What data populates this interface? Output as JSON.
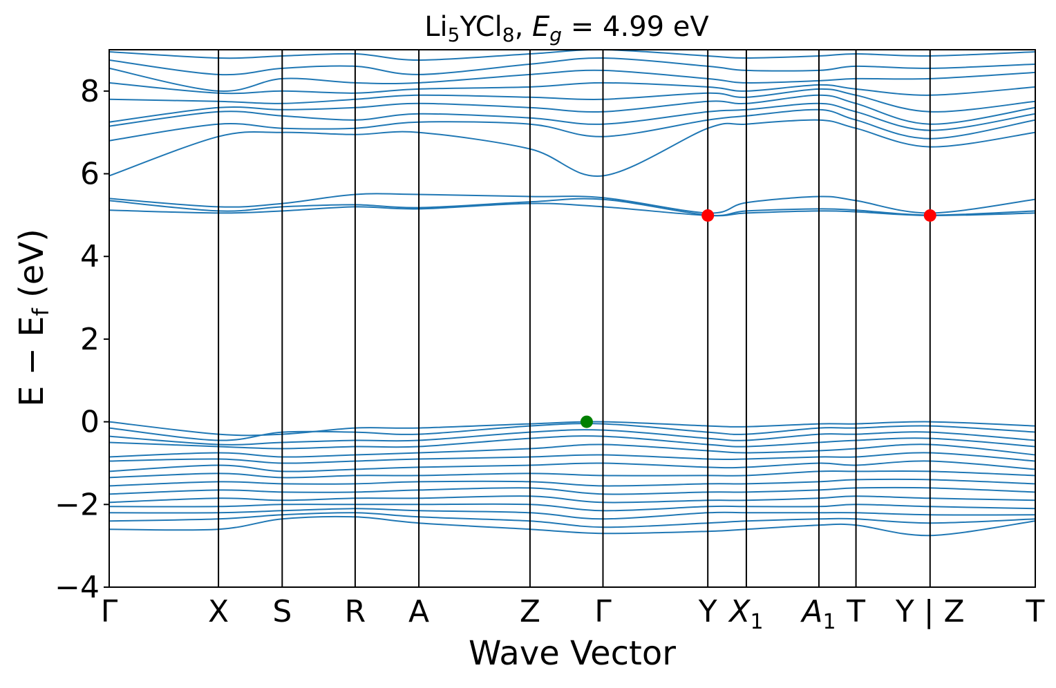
{
  "chart_data": {
    "type": "line",
    "title_parts": [
      "Li",
      "5",
      "YCl",
      "8",
      ", ",
      "E",
      "g",
      " = 4.99 eV"
    ],
    "xlabel": "Wave Vector",
    "ylabel": "E − E",
    "ylabel_sub": "f",
    "ylabel_unit": "(eV)",
    "ylim": [
      -4,
      9
    ],
    "yticks": [
      -4,
      -2,
      0,
      2,
      4,
      6,
      8
    ],
    "ytick_labels": [
      "−4",
      "−2",
      "0",
      "2",
      "4",
      "6",
      "8"
    ],
    "x_range": [
      0,
      25
    ],
    "kpoints": [
      {
        "label": "Γ",
        "x": 0
      },
      {
        "label": "X",
        "x": 2.95
      },
      {
        "label": "S",
        "x": 4.67
      },
      {
        "label": "R",
        "x": 6.64
      },
      {
        "label": "A",
        "x": 8.36
      },
      {
        "label": "Z",
        "x": 11.36
      },
      {
        "label": "Γ",
        "x": 13.33
      },
      {
        "label": "Y",
        "x": 16.16
      },
      {
        "label": "X",
        "sub": "1",
        "italic": true,
        "x": 17.2
      },
      {
        "label": "A",
        "sub": "1",
        "italic": true,
        "x": 19.16
      },
      {
        "label": "T",
        "x": 20.16
      },
      {
        "label": "Y | Z",
        "x": 22.16
      },
      {
        "label": "T",
        "x": 25
      }
    ],
    "special_points": [
      {
        "name": "VBM",
        "x": 12.89,
        "y": 0.0,
        "color": "#008000"
      },
      {
        "name": "CBM",
        "x": 16.16,
        "y": 4.99,
        "color": "#ff0000"
      },
      {
        "name": "CBM",
        "x": 22.16,
        "y": 4.99,
        "color": "#ff0000"
      }
    ],
    "band_color": "#1f77b4",
    "conduction_bands": [
      {
        "y": [
          5.12,
          5.05,
          5.1,
          5.2,
          5.15,
          5.28,
          5.2,
          4.99,
          5.05,
          5.1,
          5.08,
          4.99,
          5.05
        ]
      },
      {
        "y": [
          5.35,
          5.1,
          5.2,
          5.25,
          5.18,
          5.32,
          5.38,
          5.0,
          5.1,
          5.15,
          5.12,
          5.0,
          5.1
        ]
      },
      {
        "y": [
          5.4,
          5.2,
          5.28,
          5.5,
          5.5,
          5.45,
          5.42,
          5.05,
          5.3,
          5.45,
          5.35,
          5.05,
          5.38
        ]
      },
      {
        "y": [
          5.95,
          6.9,
          7.0,
          6.95,
          7.0,
          6.6,
          5.95,
          7.1,
          7.2,
          7.3,
          7.1,
          6.65,
          7.0
        ]
      },
      {
        "y": [
          6.8,
          7.2,
          7.1,
          7.1,
          7.25,
          7.2,
          6.9,
          7.3,
          7.4,
          7.55,
          7.3,
          6.85,
          7.3
        ]
      },
      {
        "y": [
          7.15,
          7.5,
          7.4,
          7.3,
          7.45,
          7.35,
          7.2,
          7.5,
          7.55,
          7.7,
          7.5,
          7.05,
          7.45
        ]
      },
      {
        "y": [
          7.25,
          7.6,
          7.55,
          7.6,
          7.7,
          7.6,
          7.5,
          7.75,
          7.7,
          7.9,
          7.7,
          7.2,
          7.6
        ]
      },
      {
        "y": [
          7.8,
          7.75,
          7.7,
          7.8,
          7.9,
          7.85,
          7.8,
          7.95,
          7.85,
          8.05,
          7.9,
          7.5,
          7.75
        ]
      },
      {
        "y": [
          8.2,
          7.95,
          8.0,
          7.95,
          8.05,
          8.1,
          8.2,
          8.1,
          8.0,
          8.15,
          8.05,
          7.9,
          8.1
        ]
      },
      {
        "y": [
          8.55,
          8.0,
          8.3,
          8.2,
          8.2,
          8.4,
          8.5,
          8.3,
          8.2,
          8.25,
          8.3,
          8.3,
          8.45
        ]
      },
      {
        "y": [
          8.75,
          8.4,
          8.55,
          8.6,
          8.4,
          8.65,
          8.8,
          8.6,
          8.5,
          8.5,
          8.6,
          8.55,
          8.65
        ]
      },
      {
        "y": [
          8.95,
          8.8,
          8.85,
          8.9,
          8.75,
          8.9,
          9.0,
          8.85,
          8.8,
          8.85,
          8.9,
          8.85,
          8.95
        ]
      }
    ],
    "valence_bands": [
      {
        "y": [
          0.0,
          -0.3,
          -0.3,
          -0.15,
          -0.15,
          -0.05,
          0.0,
          -0.1,
          -0.12,
          -0.05,
          -0.05,
          0.0,
          -0.1
        ]
      },
      {
        "y": [
          -0.15,
          -0.45,
          -0.25,
          -0.25,
          -0.3,
          -0.1,
          -0.05,
          -0.25,
          -0.3,
          -0.15,
          -0.15,
          -0.1,
          -0.25
        ]
      },
      {
        "y": [
          -0.35,
          -0.55,
          -0.5,
          -0.45,
          -0.45,
          -0.25,
          -0.2,
          -0.4,
          -0.45,
          -0.3,
          -0.3,
          -0.25,
          -0.45
        ]
      },
      {
        "y": [
          -0.5,
          -0.6,
          -0.65,
          -0.6,
          -0.6,
          -0.4,
          -0.35,
          -0.55,
          -0.6,
          -0.5,
          -0.45,
          -0.4,
          -0.6
        ]
      },
      {
        "y": [
          -0.85,
          -0.75,
          -0.85,
          -0.8,
          -0.75,
          -0.65,
          -0.55,
          -0.7,
          -0.75,
          -0.7,
          -0.65,
          -0.55,
          -0.8
        ]
      },
      {
        "y": [
          -0.95,
          -0.9,
          -1.0,
          -0.95,
          -0.9,
          -0.85,
          -0.8,
          -0.9,
          -0.9,
          -0.85,
          -0.85,
          -0.75,
          -0.95
        ]
      },
      {
        "y": [
          -1.2,
          -1.05,
          -1.2,
          -1.15,
          -1.1,
          -1.05,
          -1.0,
          -1.1,
          -1.1,
          -1.0,
          -1.05,
          -0.95,
          -1.15
        ]
      },
      {
        "y": [
          -1.35,
          -1.25,
          -1.35,
          -1.3,
          -1.3,
          -1.25,
          -1.3,
          -1.3,
          -1.3,
          -1.2,
          -1.2,
          -1.2,
          -1.3
        ]
      },
      {
        "y": [
          -1.55,
          -1.45,
          -1.5,
          -1.5,
          -1.45,
          -1.45,
          -1.55,
          -1.5,
          -1.5,
          -1.45,
          -1.4,
          -1.4,
          -1.5
        ]
      },
      {
        "y": [
          -1.75,
          -1.65,
          -1.7,
          -1.7,
          -1.65,
          -1.6,
          -1.75,
          -1.7,
          -1.7,
          -1.65,
          -1.6,
          -1.6,
          -1.7
        ]
      },
      {
        "y": [
          -1.95,
          -1.85,
          -1.9,
          -1.85,
          -1.85,
          -1.8,
          -1.95,
          -1.9,
          -1.9,
          -1.85,
          -1.8,
          -1.85,
          -1.9
        ]
      },
      {
        "y": [
          -2.05,
          -2.05,
          -2.0,
          -2.0,
          -2.0,
          -2.0,
          -2.15,
          -2.05,
          -2.05,
          -2.05,
          -2.0,
          -2.05,
          -2.1
        ]
      },
      {
        "y": [
          -2.2,
          -2.2,
          -2.15,
          -2.1,
          -2.15,
          -2.2,
          -2.35,
          -2.2,
          -2.2,
          -2.2,
          -2.2,
          -2.25,
          -2.25
        ]
      },
      {
        "y": [
          -2.4,
          -2.35,
          -2.25,
          -2.2,
          -2.3,
          -2.4,
          -2.55,
          -2.45,
          -2.4,
          -2.35,
          -2.35,
          -2.45,
          -2.35
        ]
      },
      {
        "y": [
          -2.6,
          -2.6,
          -2.35,
          -2.3,
          -2.45,
          -2.6,
          -2.7,
          -2.65,
          -2.6,
          -2.5,
          -2.5,
          -2.75,
          -2.4
        ]
      }
    ]
  }
}
